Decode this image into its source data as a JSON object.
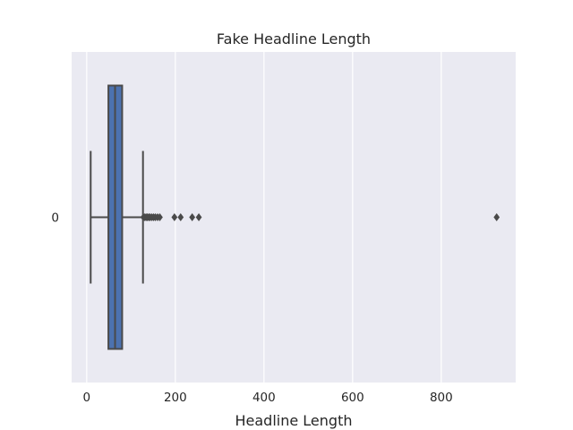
{
  "chart_data": {
    "type": "box",
    "title": "Fake Headline Length",
    "xlabel": "Headline Length",
    "ylabel": "",
    "orientation": "horizontal",
    "categories": [
      "0"
    ],
    "xlim": [
      -34,
      968
    ],
    "x_ticks": [
      0,
      200,
      400,
      600,
      800
    ],
    "grid": true,
    "colors": {
      "background": "#EAEAF2",
      "grid": "#FFFFFF",
      "box_fill": "#4C72B0",
      "line": "#4A4A4A"
    },
    "box": {
      "whisker_low": 9,
      "q1": 49,
      "median": 64,
      "q3": 80,
      "whisker_high": 127
    },
    "outliers": [
      128,
      131,
      134,
      137,
      140,
      143,
      147,
      151,
      155,
      160,
      165,
      198,
      212,
      238,
      253,
      925
    ]
  }
}
